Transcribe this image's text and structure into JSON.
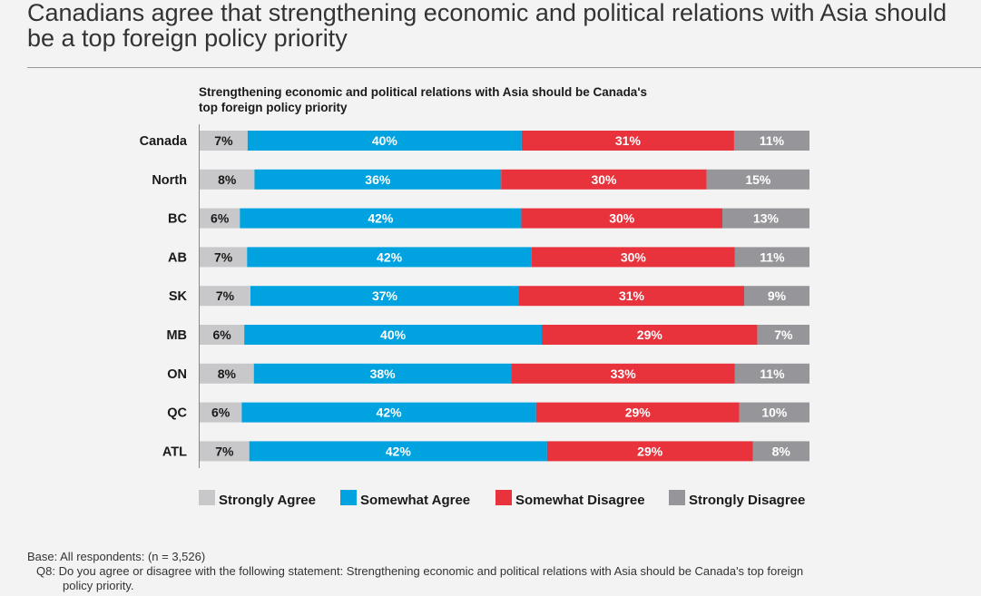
{
  "title": "Canadians agree that strengthening economic and political relations with Asia should be a top foreign policy priority",
  "footnote": {
    "base": "Base: All respondents: (n = 3,526)",
    "question_line1": "Q8: Do you agree or disagree with the following statement: Strengthening economic and political relations with Asia should be Canada's top foreign",
    "question_line2": "policy priority."
  },
  "chart_data": {
    "type": "bar",
    "orientation": "horizontal",
    "stacked": true,
    "title_lines": [
      "Strengthening economic and political relations with Asia should be Canada's",
      "top foreign policy priority"
    ],
    "categories": [
      "Canada",
      "North",
      "BC",
      "AB",
      "SK",
      "MB",
      "ON",
      "QC",
      "ATL"
    ],
    "series": [
      {
        "name": "Strongly Agree",
        "color": "#c8c8ca",
        "label_color": "#1a1a1a",
        "values": [
          7,
          8,
          6,
          7,
          7,
          6,
          8,
          6,
          7
        ]
      },
      {
        "name": "Somewhat Agree",
        "color": "#00a2e0",
        "label_color": "#ffffff",
        "values": [
          40,
          36,
          42,
          42,
          37,
          40,
          38,
          42,
          42
        ]
      },
      {
        "name": "Somewhat Disagree",
        "color": "#e8323c",
        "label_color": "#ffffff",
        "values": [
          31,
          30,
          30,
          30,
          31,
          29,
          33,
          29,
          29
        ]
      },
      {
        "name": "Strongly Disagree",
        "color": "#96969a",
        "label_color": "#ffffff",
        "values": [
          11,
          15,
          13,
          11,
          9,
          7,
          11,
          10,
          8
        ]
      }
    ],
    "value_suffix": "%",
    "legend_position": "bottom",
    "grid": false
  }
}
